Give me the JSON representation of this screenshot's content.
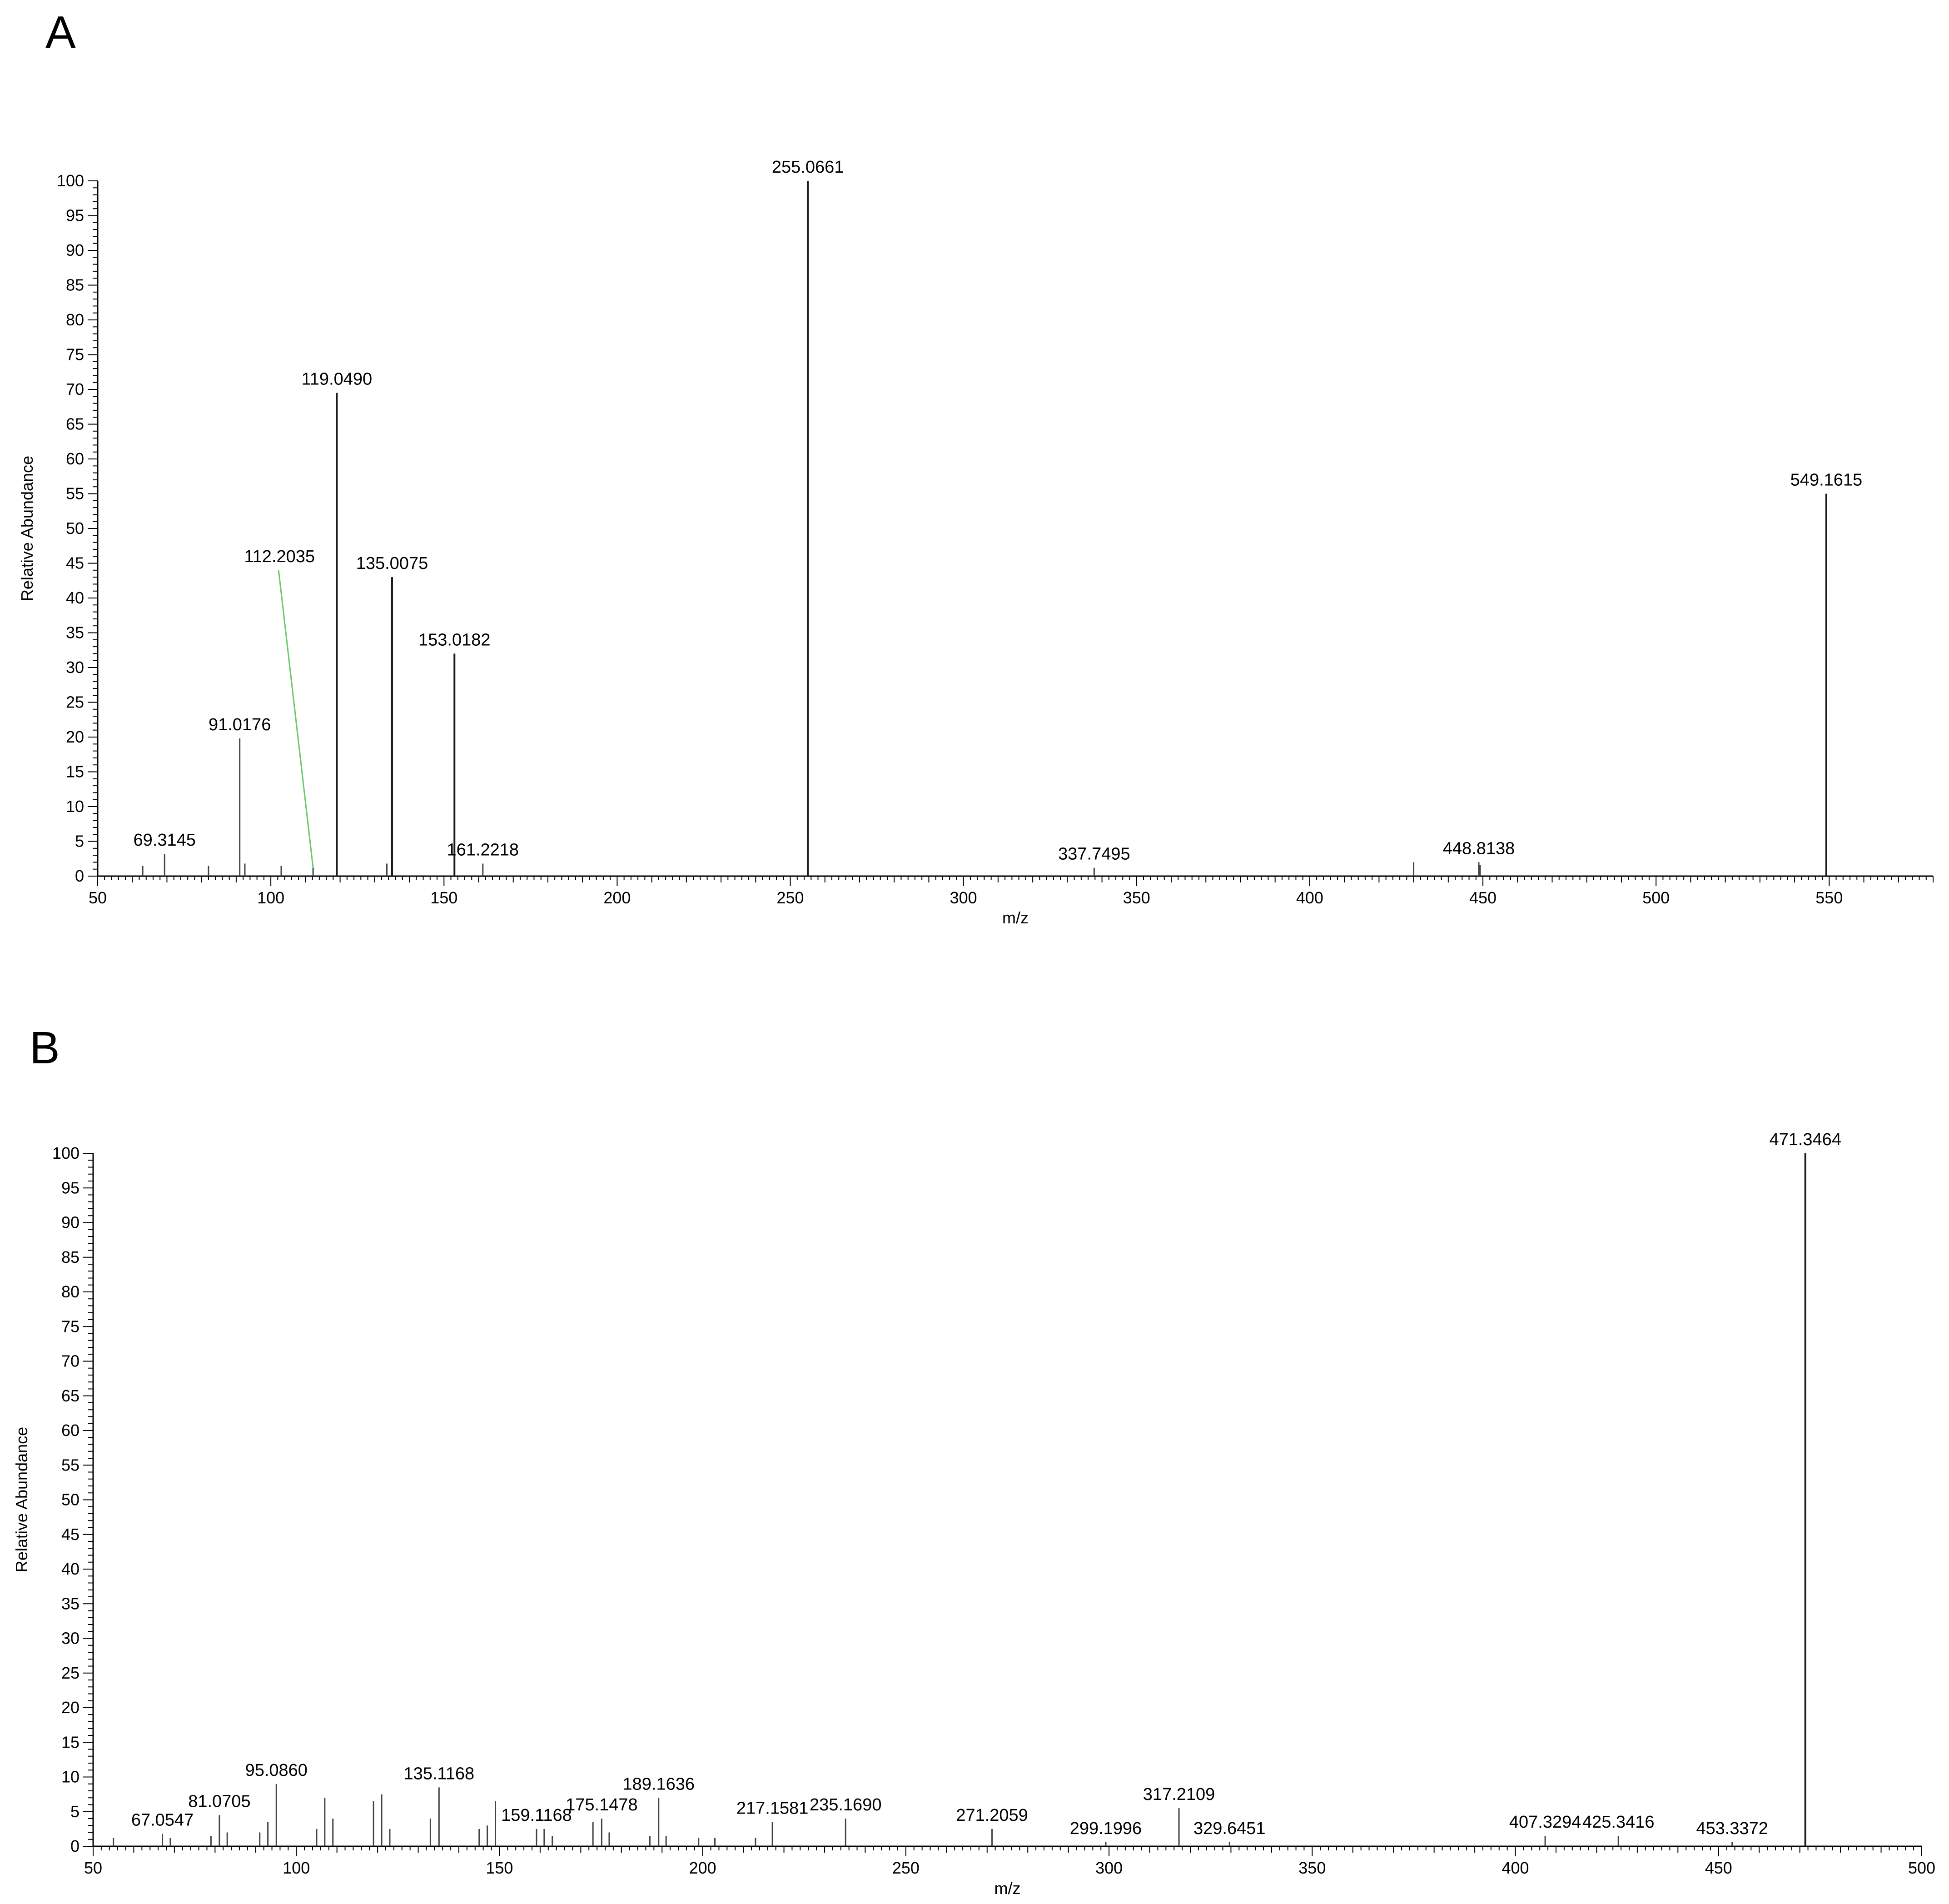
{
  "panels": [
    "A",
    "B"
  ],
  "chart_data": [
    {
      "type": "bar",
      "panel": "A",
      "xlabel": "m/z",
      "ylabel": "Relative Abundance",
      "xlim": [
        50,
        580
      ],
      "ylim": [
        0,
        100
      ],
      "x_ticks": [
        50,
        100,
        150,
        200,
        250,
        300,
        350,
        400,
        450,
        500,
        550
      ],
      "y_ticks": [
        0,
        5,
        10,
        15,
        20,
        25,
        30,
        35,
        40,
        45,
        50,
        55,
        60,
        65,
        70,
        75,
        80,
        85,
        90,
        95,
        100
      ],
      "peaks": [
        {
          "mz": 63.0,
          "intensity": 1.5
        },
        {
          "mz": 69.3145,
          "intensity": 3.2
        },
        {
          "mz": 82.0,
          "intensity": 1.5
        },
        {
          "mz": 91.0176,
          "intensity": 19.8
        },
        {
          "mz": 92.5,
          "intensity": 1.8
        },
        {
          "mz": 103.0,
          "intensity": 1.5
        },
        {
          "mz": 112.2035,
          "intensity": 1.2
        },
        {
          "mz": 119.049,
          "intensity": 69.5
        },
        {
          "mz": 133.5,
          "intensity": 1.8
        },
        {
          "mz": 135.0075,
          "intensity": 43.0
        },
        {
          "mz": 153.0182,
          "intensity": 32.0
        },
        {
          "mz": 161.2218,
          "intensity": 1.8
        },
        {
          "mz": 255.0661,
          "intensity": 100.0
        },
        {
          "mz": 337.7495,
          "intensity": 1.2
        },
        {
          "mz": 430.0,
          "intensity": 2.0
        },
        {
          "mz": 448.8138,
          "intensity": 2.0
        },
        {
          "mz": 449.2,
          "intensity": 1.6
        },
        {
          "mz": 549.1615,
          "intensity": 55.0
        }
      ],
      "peak_labels": [
        {
          "text": "69.3145",
          "mz": 69.3145,
          "intensity": 3.2
        },
        {
          "text": "91.0176",
          "mz": 91.0176,
          "intensity": 19.8
        },
        {
          "text": "112.2035",
          "mz": 112.2035,
          "intensity": 1.2,
          "callout_to": {
            "mz": 102.5,
            "intensity": 44.0
          }
        },
        {
          "text": "119.0490",
          "mz": 119.049,
          "intensity": 69.5
        },
        {
          "text": "135.0075",
          "mz": 135.0075,
          "intensity": 43.0
        },
        {
          "text": "153.0182",
          "mz": 153.0182,
          "intensity": 32.0
        },
        {
          "text": "161.2218",
          "mz": 161.2218,
          "intensity": 1.8
        },
        {
          "text": "255.0661",
          "mz": 255.0661,
          "intensity": 100.0
        },
        {
          "text": "337.7495",
          "mz": 337.7495,
          "intensity": 1.2
        },
        {
          "text": "448.8138",
          "mz": 448.8138,
          "intensity": 2.0
        },
        {
          "text": "549.1615",
          "mz": 549.1615,
          "intensity": 55.0
        }
      ],
      "grid": false
    },
    {
      "type": "bar",
      "panel": "B",
      "xlabel": "m/z",
      "ylabel": "Relative Abundance",
      "xlim": [
        50,
        500
      ],
      "ylim": [
        0,
        100
      ],
      "x_ticks": [
        50,
        100,
        150,
        200,
        250,
        300,
        350,
        400,
        450,
        500
      ],
      "y_ticks": [
        0,
        5,
        10,
        15,
        20,
        25,
        30,
        35,
        40,
        45,
        50,
        55,
        60,
        65,
        70,
        75,
        80,
        85,
        90,
        95,
        100
      ],
      "peaks": [
        {
          "mz": 55.0,
          "intensity": 1.2
        },
        {
          "mz": 67.0547,
          "intensity": 1.8
        },
        {
          "mz": 69.0,
          "intensity": 1.2
        },
        {
          "mz": 79.0,
          "intensity": 1.5
        },
        {
          "mz": 81.0705,
          "intensity": 4.5
        },
        {
          "mz": 83.0,
          "intensity": 2.0
        },
        {
          "mz": 91.0,
          "intensity": 2.0
        },
        {
          "mz": 93.0,
          "intensity": 3.5
        },
        {
          "mz": 95.086,
          "intensity": 9.0
        },
        {
          "mz": 105.0,
          "intensity": 2.5
        },
        {
          "mz": 107.0,
          "intensity": 7.0
        },
        {
          "mz": 109.0,
          "intensity": 4.0
        },
        {
          "mz": 119.0,
          "intensity": 6.5
        },
        {
          "mz": 121.0,
          "intensity": 7.5
        },
        {
          "mz": 123.0,
          "intensity": 2.5
        },
        {
          "mz": 133.0,
          "intensity": 4.0
        },
        {
          "mz": 135.1168,
          "intensity": 8.5
        },
        {
          "mz": 145.0,
          "intensity": 2.5
        },
        {
          "mz": 147.0,
          "intensity": 3.0
        },
        {
          "mz": 149.0,
          "intensity": 6.5
        },
        {
          "mz": 159.1168,
          "intensity": 2.5
        },
        {
          "mz": 161.0,
          "intensity": 2.5
        },
        {
          "mz": 163.0,
          "intensity": 1.5
        },
        {
          "mz": 173.0,
          "intensity": 3.5
        },
        {
          "mz": 175.1478,
          "intensity": 4.0
        },
        {
          "mz": 177.0,
          "intensity": 2.0
        },
        {
          "mz": 187.0,
          "intensity": 1.5
        },
        {
          "mz": 189.1636,
          "intensity": 7.0
        },
        {
          "mz": 191.0,
          "intensity": 1.5
        },
        {
          "mz": 199.0,
          "intensity": 1.2
        },
        {
          "mz": 203.0,
          "intensity": 1.2
        },
        {
          "mz": 213.0,
          "intensity": 1.2
        },
        {
          "mz": 217.1581,
          "intensity": 3.5
        },
        {
          "mz": 235.169,
          "intensity": 4.0
        },
        {
          "mz": 271.2059,
          "intensity": 2.5
        },
        {
          "mz": 299.1996,
          "intensity": 0.6
        },
        {
          "mz": 317.2109,
          "intensity": 5.5
        },
        {
          "mz": 329.6451,
          "intensity": 0.6
        },
        {
          "mz": 407.3294,
          "intensity": 1.5
        },
        {
          "mz": 425.3416,
          "intensity": 1.5
        },
        {
          "mz": 453.3372,
          "intensity": 0.6
        },
        {
          "mz": 471.3464,
          "intensity": 100.0
        }
      ],
      "peak_labels": [
        {
          "text": "67.0547",
          "mz": 67.0547,
          "intensity": 1.8
        },
        {
          "text": "81.0705",
          "mz": 81.0705,
          "intensity": 4.5
        },
        {
          "text": "95.0860",
          "mz": 95.086,
          "intensity": 9.0
        },
        {
          "text": "135.1168",
          "mz": 135.1168,
          "intensity": 8.5
        },
        {
          "text": "159.1168",
          "mz": 159.1168,
          "intensity": 2.5
        },
        {
          "text": "175.1478",
          "mz": 175.1478,
          "intensity": 4.0
        },
        {
          "text": "189.1636",
          "mz": 189.1636,
          "intensity": 7.0
        },
        {
          "text": "217.1581",
          "mz": 217.1581,
          "intensity": 3.5
        },
        {
          "text": "235.1690",
          "mz": 235.169,
          "intensity": 4.0
        },
        {
          "text": "271.2059",
          "mz": 271.2059,
          "intensity": 2.5
        },
        {
          "text": "299.1996",
          "mz": 299.1996,
          "intensity": 0.6
        },
        {
          "text": "317.2109",
          "mz": 317.2109,
          "intensity": 5.5
        },
        {
          "text": "329.6451",
          "mz": 329.6451,
          "intensity": 0.6
        },
        {
          "text": "407.3294",
          "mz": 407.3294,
          "intensity": 1.5
        },
        {
          "text": "425.3416",
          "mz": 425.3416,
          "intensity": 1.5
        },
        {
          "text": "453.3372",
          "mz": 453.3372,
          "intensity": 0.6
        },
        {
          "text": "471.3464",
          "mz": 471.3464,
          "intensity": 100.0
        }
      ],
      "grid": false
    }
  ]
}
